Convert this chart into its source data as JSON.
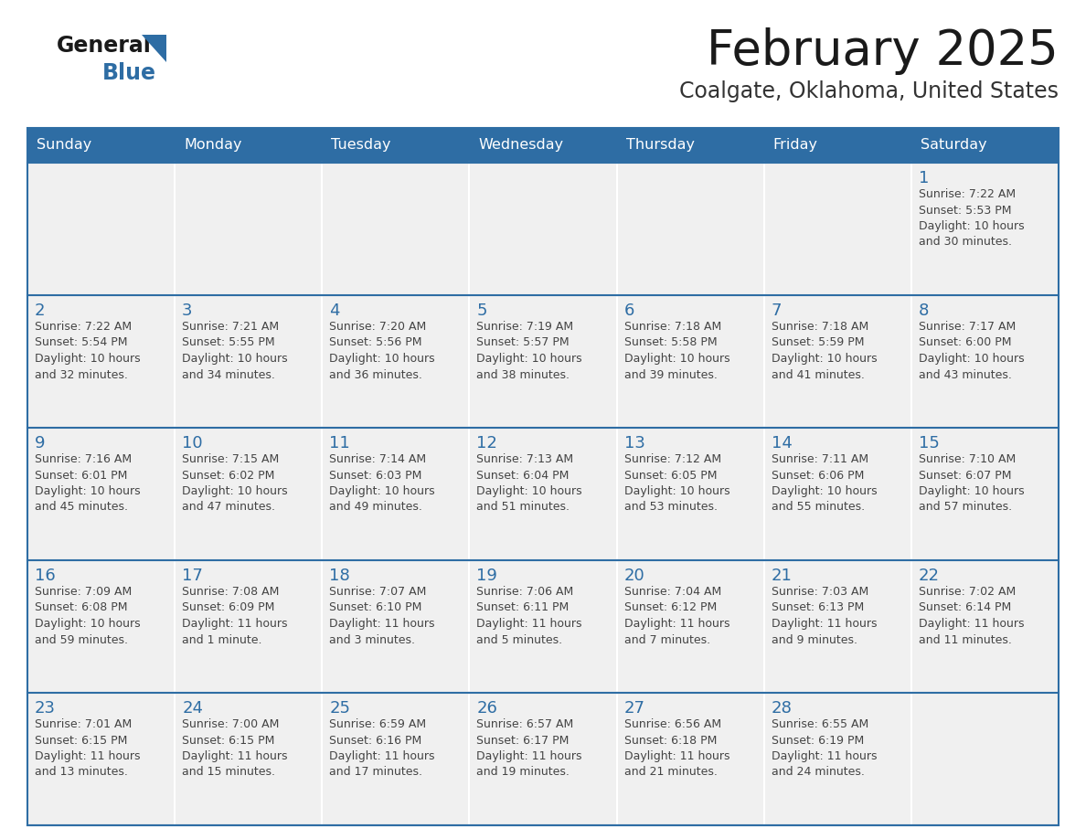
{
  "title": "February 2025",
  "subtitle": "Coalgate, Oklahoma, United States",
  "days_of_week": [
    "Sunday",
    "Monday",
    "Tuesday",
    "Wednesday",
    "Thursday",
    "Friday",
    "Saturday"
  ],
  "header_bg": "#2E6DA4",
  "header_text": "#FFFFFF",
  "cell_bg": "#F0F0F0",
  "border_color": "#2E6DA4",
  "day_number_color": "#2E6DA4",
  "cell_text_color": "#444444",
  "title_color": "#1a1a1a",
  "subtitle_color": "#333333",
  "logo_color1": "#1a1a1a",
  "logo_color2": "#2E6DA4",
  "weeks": [
    [
      {
        "day": "",
        "info": ""
      },
      {
        "day": "",
        "info": ""
      },
      {
        "day": "",
        "info": ""
      },
      {
        "day": "",
        "info": ""
      },
      {
        "day": "",
        "info": ""
      },
      {
        "day": "",
        "info": ""
      },
      {
        "day": "1",
        "info": "Sunrise: 7:22 AM\nSunset: 5:53 PM\nDaylight: 10 hours\nand 30 minutes."
      }
    ],
    [
      {
        "day": "2",
        "info": "Sunrise: 7:22 AM\nSunset: 5:54 PM\nDaylight: 10 hours\nand 32 minutes."
      },
      {
        "day": "3",
        "info": "Sunrise: 7:21 AM\nSunset: 5:55 PM\nDaylight: 10 hours\nand 34 minutes."
      },
      {
        "day": "4",
        "info": "Sunrise: 7:20 AM\nSunset: 5:56 PM\nDaylight: 10 hours\nand 36 minutes."
      },
      {
        "day": "5",
        "info": "Sunrise: 7:19 AM\nSunset: 5:57 PM\nDaylight: 10 hours\nand 38 minutes."
      },
      {
        "day": "6",
        "info": "Sunrise: 7:18 AM\nSunset: 5:58 PM\nDaylight: 10 hours\nand 39 minutes."
      },
      {
        "day": "7",
        "info": "Sunrise: 7:18 AM\nSunset: 5:59 PM\nDaylight: 10 hours\nand 41 minutes."
      },
      {
        "day": "8",
        "info": "Sunrise: 7:17 AM\nSunset: 6:00 PM\nDaylight: 10 hours\nand 43 minutes."
      }
    ],
    [
      {
        "day": "9",
        "info": "Sunrise: 7:16 AM\nSunset: 6:01 PM\nDaylight: 10 hours\nand 45 minutes."
      },
      {
        "day": "10",
        "info": "Sunrise: 7:15 AM\nSunset: 6:02 PM\nDaylight: 10 hours\nand 47 minutes."
      },
      {
        "day": "11",
        "info": "Sunrise: 7:14 AM\nSunset: 6:03 PM\nDaylight: 10 hours\nand 49 minutes."
      },
      {
        "day": "12",
        "info": "Sunrise: 7:13 AM\nSunset: 6:04 PM\nDaylight: 10 hours\nand 51 minutes."
      },
      {
        "day": "13",
        "info": "Sunrise: 7:12 AM\nSunset: 6:05 PM\nDaylight: 10 hours\nand 53 minutes."
      },
      {
        "day": "14",
        "info": "Sunrise: 7:11 AM\nSunset: 6:06 PM\nDaylight: 10 hours\nand 55 minutes."
      },
      {
        "day": "15",
        "info": "Sunrise: 7:10 AM\nSunset: 6:07 PM\nDaylight: 10 hours\nand 57 minutes."
      }
    ],
    [
      {
        "day": "16",
        "info": "Sunrise: 7:09 AM\nSunset: 6:08 PM\nDaylight: 10 hours\nand 59 minutes."
      },
      {
        "day": "17",
        "info": "Sunrise: 7:08 AM\nSunset: 6:09 PM\nDaylight: 11 hours\nand 1 minute."
      },
      {
        "day": "18",
        "info": "Sunrise: 7:07 AM\nSunset: 6:10 PM\nDaylight: 11 hours\nand 3 minutes."
      },
      {
        "day": "19",
        "info": "Sunrise: 7:06 AM\nSunset: 6:11 PM\nDaylight: 11 hours\nand 5 minutes."
      },
      {
        "day": "20",
        "info": "Sunrise: 7:04 AM\nSunset: 6:12 PM\nDaylight: 11 hours\nand 7 minutes."
      },
      {
        "day": "21",
        "info": "Sunrise: 7:03 AM\nSunset: 6:13 PM\nDaylight: 11 hours\nand 9 minutes."
      },
      {
        "day": "22",
        "info": "Sunrise: 7:02 AM\nSunset: 6:14 PM\nDaylight: 11 hours\nand 11 minutes."
      }
    ],
    [
      {
        "day": "23",
        "info": "Sunrise: 7:01 AM\nSunset: 6:15 PM\nDaylight: 11 hours\nand 13 minutes."
      },
      {
        "day": "24",
        "info": "Sunrise: 7:00 AM\nSunset: 6:15 PM\nDaylight: 11 hours\nand 15 minutes."
      },
      {
        "day": "25",
        "info": "Sunrise: 6:59 AM\nSunset: 6:16 PM\nDaylight: 11 hours\nand 17 minutes."
      },
      {
        "day": "26",
        "info": "Sunrise: 6:57 AM\nSunset: 6:17 PM\nDaylight: 11 hours\nand 19 minutes."
      },
      {
        "day": "27",
        "info": "Sunrise: 6:56 AM\nSunset: 6:18 PM\nDaylight: 11 hours\nand 21 minutes."
      },
      {
        "day": "28",
        "info": "Sunrise: 6:55 AM\nSunset: 6:19 PM\nDaylight: 11 hours\nand 24 minutes."
      },
      {
        "day": "",
        "info": ""
      }
    ]
  ]
}
